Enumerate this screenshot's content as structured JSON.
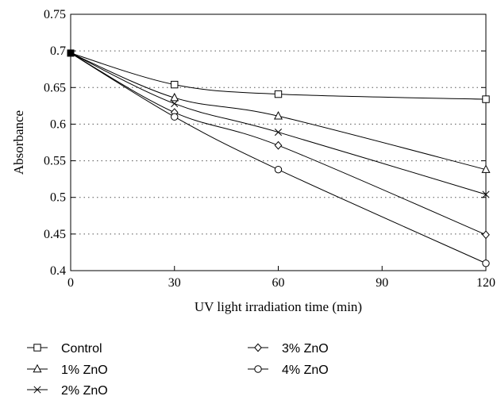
{
  "chart_data": {
    "type": "line",
    "title": "",
    "xlabel": "UV light irradiation time (min)",
    "ylabel": "Absorbance",
    "xlim": [
      0,
      120
    ],
    "ylim": [
      0.4,
      0.75
    ],
    "xticks": [
      0,
      30,
      60,
      90,
      120
    ],
    "yticks": [
      0.4,
      0.45,
      0.5,
      0.55,
      0.6,
      0.65,
      0.7,
      0.75
    ],
    "xtick_labels": [
      "0",
      "30",
      "60",
      "90",
      "120"
    ],
    "ytick_labels": [
      "0.4",
      "0.45",
      "0.5",
      "0.55",
      "0.6",
      "0.65",
      "0.7",
      "0.75"
    ],
    "grid": "horizontal dotted",
    "legend_position": "bottom",
    "x": [
      0,
      30,
      60,
      120
    ],
    "series": [
      {
        "name": "Control",
        "marker": "square",
        "values": [
          0.697,
          0.654,
          0.641,
          0.634
        ]
      },
      {
        "name": "1% ZnO",
        "marker": "triangle",
        "values": [
          0.697,
          0.636,
          0.611,
          0.538
        ]
      },
      {
        "name": "2% ZnO",
        "marker": "x",
        "values": [
          0.697,
          0.628,
          0.589,
          0.504
        ]
      },
      {
        "name": "3% ZnO",
        "marker": "diamond",
        "values": [
          0.697,
          0.616,
          0.571,
          0.449
        ]
      },
      {
        "name": "4% ZnO",
        "marker": "circle",
        "values": [
          0.697,
          0.61,
          0.538,
          0.41
        ]
      }
    ],
    "line_color": "#000000",
    "grid_color": "#555555"
  }
}
